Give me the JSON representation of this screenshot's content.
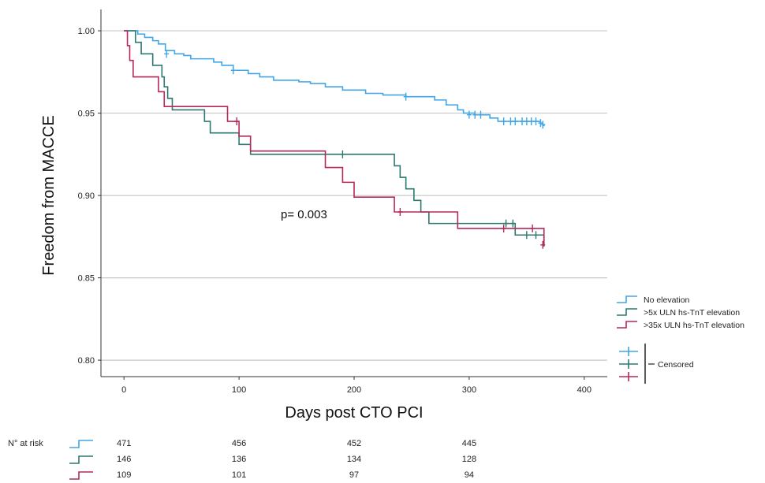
{
  "chart_data": {
    "type": "line",
    "subtype": "kaplan-meier step",
    "title": "",
    "xlabel": "Days post CTO PCI",
    "ylabel": "Freedom from MACCE",
    "xlim": [
      -20,
      420
    ],
    "ylim": [
      0.79,
      1.012
    ],
    "x_ticks": [
      "0",
      "100",
      "200",
      "300",
      "400"
    ],
    "y_ticks": [
      "1.00",
      "0.95",
      "0.90",
      "0.85",
      "0.80"
    ],
    "grid": "horizontal",
    "annotation": "p= 0.003",
    "series": [
      {
        "name": "No elevation",
        "color": "#41a6e8",
        "steps": [
          [
            0,
            1.0
          ],
          [
            12,
            0.998
          ],
          [
            18,
            0.996
          ],
          [
            25,
            0.994
          ],
          [
            30,
            0.992
          ],
          [
            36,
            0.988
          ],
          [
            44,
            0.986
          ],
          [
            52,
            0.985
          ],
          [
            58,
            0.983
          ],
          [
            78,
            0.981
          ],
          [
            85,
            0.979
          ],
          [
            95,
            0.976
          ],
          [
            108,
            0.974
          ],
          [
            118,
            0.972
          ],
          [
            130,
            0.97
          ],
          [
            152,
            0.969
          ],
          [
            162,
            0.968
          ],
          [
            175,
            0.966
          ],
          [
            190,
            0.964
          ],
          [
            210,
            0.962
          ],
          [
            225,
            0.961
          ],
          [
            245,
            0.96
          ],
          [
            270,
            0.958
          ],
          [
            280,
            0.955
          ],
          [
            290,
            0.952
          ],
          [
            295,
            0.95
          ],
          [
            305,
            0.949
          ],
          [
            318,
            0.947
          ],
          [
            325,
            0.945
          ],
          [
            362,
            0.944
          ],
          [
            364,
            0.943
          ],
          [
            365,
            0.942
          ]
        ],
        "censored": [
          [
            37,
            0.986
          ],
          [
            95,
            0.976
          ],
          [
            245,
            0.96
          ],
          [
            300,
            0.949
          ],
          [
            305,
            0.949
          ],
          [
            310,
            0.949
          ],
          [
            330,
            0.945
          ],
          [
            336,
            0.945
          ],
          [
            340,
            0.945
          ],
          [
            346,
            0.945
          ],
          [
            350,
            0.945
          ],
          [
            354,
            0.945
          ],
          [
            358,
            0.945
          ],
          [
            362,
            0.944
          ],
          [
            364,
            0.943
          ]
        ]
      },
      {
        "name": ">5x ULN hs-TnT elevation",
        "color": "#2e7872",
        "steps": [
          [
            0,
            1.0
          ],
          [
            10,
            0.993
          ],
          [
            15,
            0.986
          ],
          [
            25,
            0.979
          ],
          [
            33,
            0.972
          ],
          [
            35,
            0.966
          ],
          [
            38,
            0.959
          ],
          [
            42,
            0.952
          ],
          [
            70,
            0.945
          ],
          [
            75,
            0.938
          ],
          [
            100,
            0.931
          ],
          [
            110,
            0.925
          ],
          [
            235,
            0.918
          ],
          [
            240,
            0.911
          ],
          [
            245,
            0.904
          ],
          [
            252,
            0.897
          ],
          [
            258,
            0.89
          ],
          [
            265,
            0.883
          ],
          [
            330,
            0.883
          ],
          [
            340,
            0.876
          ],
          [
            365,
            0.869
          ]
        ],
        "censored": [
          [
            190,
            0.925
          ],
          [
            332,
            0.883
          ],
          [
            338,
            0.883
          ],
          [
            350,
            0.876
          ],
          [
            358,
            0.876
          ]
        ]
      },
      {
        "name": ">35x ULN hs-TnT elevation",
        "color": "#b6285a",
        "steps": [
          [
            0,
            1.0
          ],
          [
            3,
            0.991
          ],
          [
            5,
            0.982
          ],
          [
            8,
            0.972
          ],
          [
            30,
            0.963
          ],
          [
            35,
            0.954
          ],
          [
            90,
            0.945
          ],
          [
            100,
            0.936
          ],
          [
            110,
            0.927
          ],
          [
            175,
            0.917
          ],
          [
            190,
            0.908
          ],
          [
            200,
            0.899
          ],
          [
            235,
            0.89
          ],
          [
            290,
            0.88
          ],
          [
            365,
            0.87
          ]
        ],
        "censored": [
          [
            98,
            0.945
          ],
          [
            240,
            0.89
          ],
          [
            330,
            0.88
          ],
          [
            355,
            0.88
          ],
          [
            364,
            0.87
          ]
        ]
      }
    ],
    "legend": {
      "entries": [
        "No elevation",
        ">5x ULN hs-TnT elevation",
        ">35x ULN hs-TnT elevation"
      ],
      "censored_label": "Censored",
      "placement": "right"
    },
    "at_risk": {
      "label": "N° at risk",
      "columns_x": [
        0,
        100,
        200,
        300
      ],
      "rows": [
        {
          "series": "No elevation",
          "values": [
            "471",
            "456",
            "452",
            "445"
          ]
        },
        {
          "series": ">5x ULN hs-TnT elevation",
          "values": [
            "146",
            "136",
            "134",
            "128"
          ]
        },
        {
          "series": ">35x ULN hs-TnT elevation",
          "values": [
            "109",
            "101",
            "97",
            "94"
          ]
        }
      ]
    }
  }
}
